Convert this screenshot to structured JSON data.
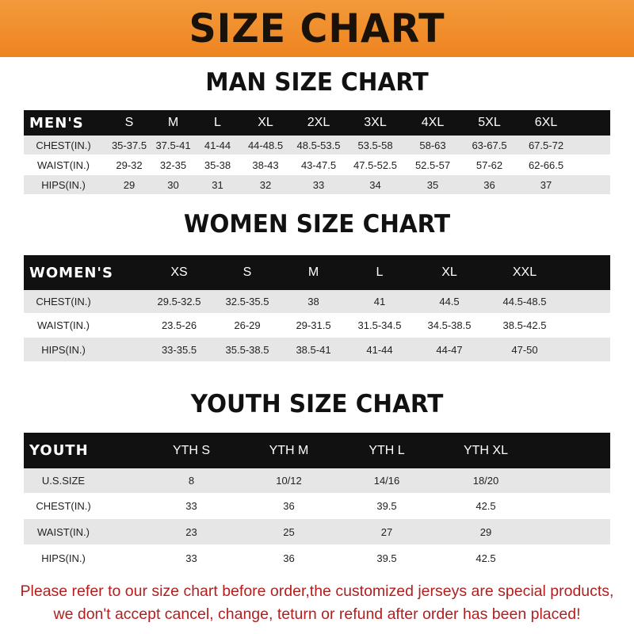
{
  "banner_title": "SIZE CHART",
  "colors": {
    "banner": "#ee8420",
    "header_row": "#111111",
    "stripe": "#e6e6e6",
    "notice": "#b31e1e"
  },
  "men": {
    "title": "MAN SIZE CHART",
    "header": "MEN'S",
    "sizes": [
      "S",
      "M",
      "L",
      "XL",
      "2XL",
      "3XL",
      "4XL",
      "5XL",
      "6XL"
    ],
    "rows": [
      {
        "label": "CHEST(IN.)",
        "values": [
          "35-37.5",
          "37.5-41",
          "41-44",
          "44-48.5",
          "48.5-53.5",
          "53.5-58",
          "58-63",
          "63-67.5",
          "67.5-72"
        ]
      },
      {
        "label": "WAIST(IN.)",
        "values": [
          "29-32",
          "32-35",
          "35-38",
          "38-43",
          "43-47.5",
          "47.5-52.5",
          "52.5-57",
          "57-62",
          "62-66.5"
        ]
      },
      {
        "label": "HIPS(IN.)",
        "values": [
          "29",
          "30",
          "31",
          "32",
          "33",
          "34",
          "35",
          "36",
          "37"
        ]
      }
    ]
  },
  "women": {
    "title": "WOMEN SIZE CHART",
    "header": "WOMEN'S",
    "sizes": [
      "XS",
      "S",
      "M",
      "L",
      "XL",
      "XXL"
    ],
    "rows": [
      {
        "label": "CHEST(IN.)",
        "values": [
          "29.5-32.5",
          "32.5-35.5",
          "38",
          "41",
          "44.5",
          "44.5-48.5"
        ]
      },
      {
        "label": "WAIST(IN.)",
        "values": [
          "23.5-26",
          "26-29",
          "29-31.5",
          "31.5-34.5",
          "34.5-38.5",
          "38.5-42.5"
        ]
      },
      {
        "label": "HIPS(IN.)",
        "values": [
          "33-35.5",
          "35.5-38.5",
          "38.5-41",
          "41-44",
          "44-47",
          "47-50"
        ]
      }
    ]
  },
  "youth": {
    "title": "YOUTH SIZE CHART",
    "header": "YOUTH",
    "sizes": [
      "YTH S",
      "YTH M",
      "YTH L",
      "YTH XL"
    ],
    "rows": [
      {
        "label": "U.S.SIZE",
        "values": [
          "8",
          "10/12",
          "14/16",
          "18/20"
        ]
      },
      {
        "label": "CHEST(IN.)",
        "values": [
          "33",
          "36",
          "39.5",
          "42.5"
        ]
      },
      {
        "label": "WAIST(IN.)",
        "values": [
          "23",
          "25",
          "27",
          "29"
        ]
      },
      {
        "label": "HIPS(IN.)",
        "values": [
          "33",
          "36",
          "39.5",
          "42.5"
        ]
      }
    ]
  },
  "notice": {
    "line1": "Please refer to our size chart before order,the customized jerseys are special products,",
    "line2": "we don't accept cancel, change, teturn or refund after order has been placed!"
  }
}
